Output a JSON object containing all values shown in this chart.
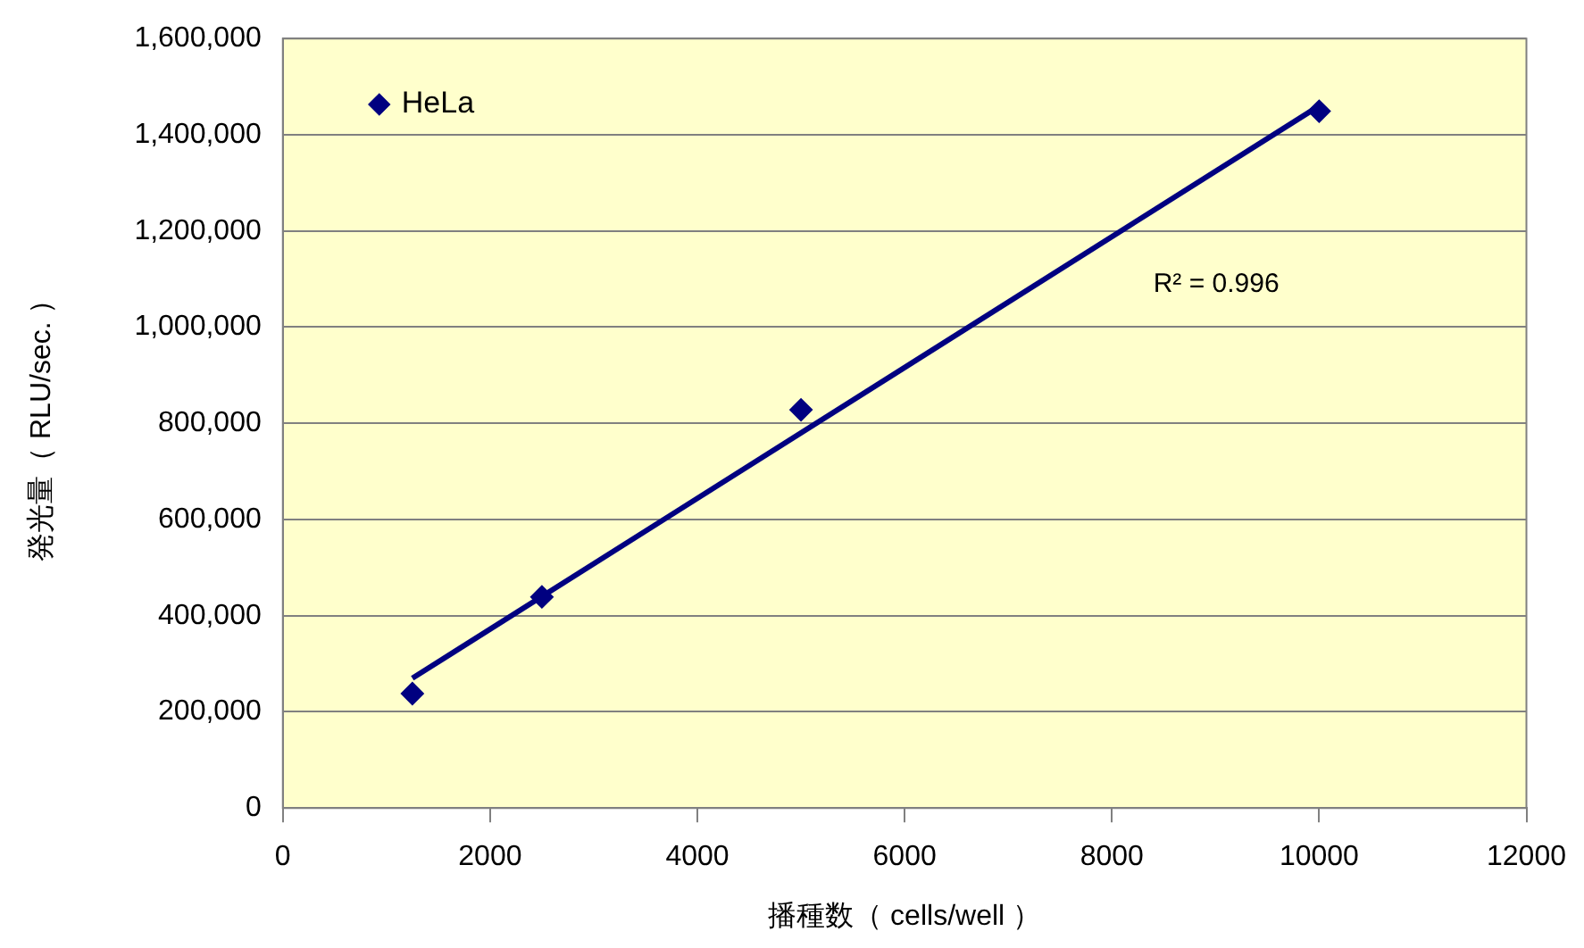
{
  "chart_data": {
    "type": "scatter",
    "xlabel": "播種数（ cells/well ）",
    "ylabel": "発光量（ RLU/sec. ）",
    "xlim": [
      0,
      12000
    ],
    "xticks": [
      0,
      2000,
      4000,
      6000,
      8000,
      10000,
      12000
    ],
    "ylim": [
      0,
      1600000
    ],
    "yticks": [
      {
        "value": 0,
        "label": "0"
      },
      {
        "value": 200000,
        "label": "200,000"
      },
      {
        "value": 400000,
        "label": "400,000"
      },
      {
        "value": 600000,
        "label": "600,000"
      },
      {
        "value": 800000,
        "label": "800,000"
      },
      {
        "value": 1000000,
        "label": "1,000,000"
      },
      {
        "value": 1200000,
        "label": "1,200,000"
      },
      {
        "value": 1400000,
        "label": "1,400,000"
      },
      {
        "value": 1600000,
        "label": "1,600,000"
      }
    ],
    "series": [
      {
        "name": "HeLa",
        "color": "#000080",
        "marker": "diamond",
        "x": [
          1250,
          2500,
          5000,
          10000
        ],
        "values": [
          238000,
          439000,
          828000,
          1449000
        ]
      },
      {
        "type": "line",
        "color": "#000080",
        "marker": "none",
        "x": [
          1250,
          10000
        ],
        "values": [
          270000,
          1460000
        ]
      }
    ],
    "annotations": [
      "R² = 0.996"
    ],
    "grid": "y",
    "legend": "top left"
  }
}
